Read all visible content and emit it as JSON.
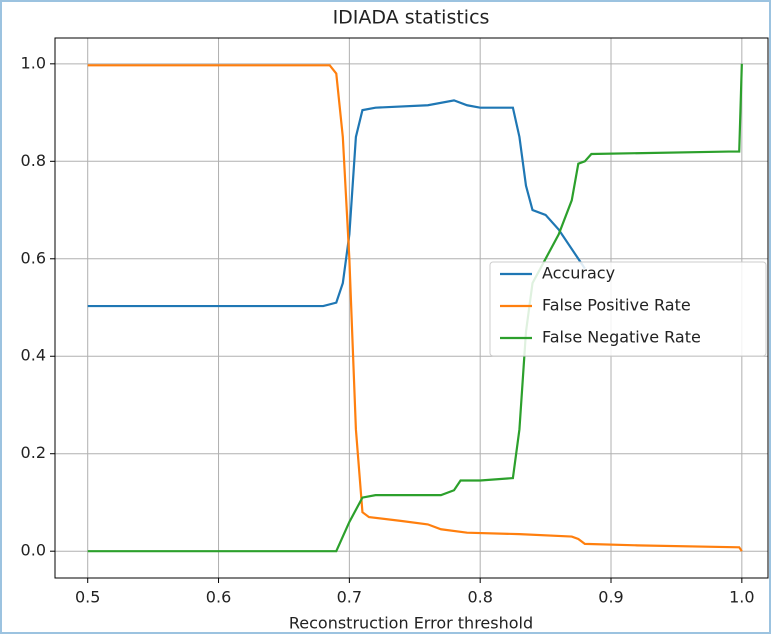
{
  "chart_data": {
    "type": "line",
    "title": "IDIADA statistics",
    "x_label": "Reconstruction Error threshold",
    "xlim": [
      0.475,
      1.02
    ],
    "ylim": [
      -0.055,
      1.053
    ],
    "xticks": [
      0.5,
      0.6,
      0.7,
      0.8,
      0.9,
      {
        "value": 1,
        "label": "1.0"
      }
    ],
    "yticks": [
      {
        "value": 0,
        "label": "0.0"
      },
      0.2,
      0.4,
      0.6,
      0.8,
      {
        "value": 1,
        "label": "1.0"
      }
    ],
    "grid": true,
    "legend": "center right",
    "series": [
      {
        "name": "Accuracy",
        "color": "#1f77b4",
        "x": [
          0.5,
          0.68,
          0.69,
          0.695,
          0.7,
          0.705,
          0.71,
          0.72,
          0.76,
          0.78,
          0.79,
          0.8,
          0.825,
          0.83,
          0.835,
          0.84,
          0.85,
          0.86,
          0.875,
          0.88
        ],
        "values": [
          0.503,
          0.503,
          0.51,
          0.55,
          0.65,
          0.85,
          0.905,
          0.91,
          0.915,
          0.925,
          0.915,
          0.91,
          0.91,
          0.85,
          0.75,
          0.7,
          0.69,
          0.66,
          0.6,
          0.58
        ]
      },
      {
        "name": "False Positive Rate",
        "color": "#ff7f0e",
        "x": [
          0.5,
          0.685,
          0.69,
          0.695,
          0.7,
          0.705,
          0.71,
          0.715,
          0.74,
          0.76,
          0.77,
          0.79,
          0.83,
          0.87,
          0.875,
          0.88,
          0.92,
          0.998,
          1
        ],
        "values": [
          0.997,
          0.997,
          0.98,
          0.85,
          0.6,
          0.25,
          0.08,
          0.07,
          0.062,
          0.055,
          0.045,
          0.038,
          0.035,
          0.03,
          0.025,
          0.015,
          0.012,
          0.008,
          0
        ]
      },
      {
        "name": "False Negative Rate",
        "color": "#2ca02c",
        "x": [
          0.5,
          0.69,
          0.695,
          0.7,
          0.71,
          0.72,
          0.77,
          0.78,
          0.785,
          0.8,
          0.825,
          0.83,
          0.835,
          0.84,
          0.86,
          0.87,
          0.875,
          0.88,
          0.885,
          0.99,
          0.998,
          1
        ],
        "values": [
          0,
          0,
          0.03,
          0.06,
          0.11,
          0.115,
          0.115,
          0.125,
          0.145,
          0.145,
          0.15,
          0.25,
          0.45,
          0.55,
          0.65,
          0.72,
          0.795,
          0.8,
          0.815,
          0.82,
          0.82,
          1
        ]
      }
    ]
  }
}
